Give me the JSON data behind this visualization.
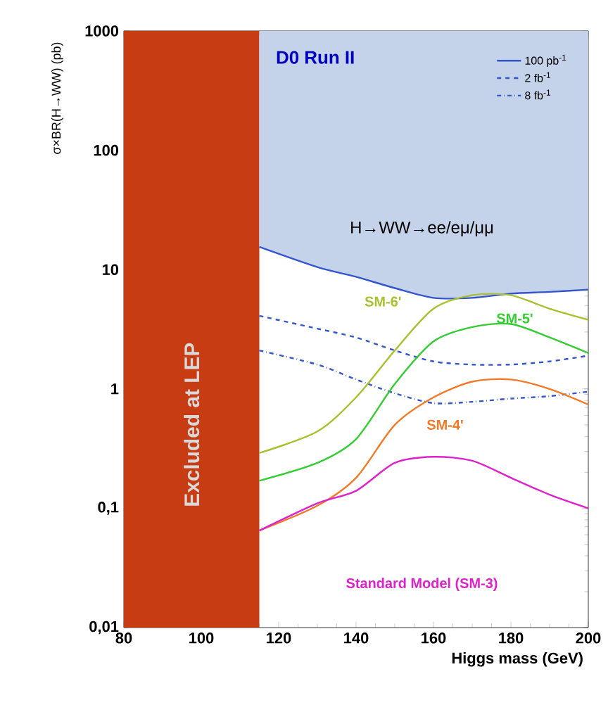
{
  "chart_data": {
    "type": "line",
    "xlabel": "Higgs mass (GeV)",
    "ylabel": "σ×BR(H→WW) (pb)",
    "x": [
      115,
      130,
      140,
      150,
      160,
      170,
      180,
      190,
      200
    ],
    "series": [
      {
        "name": "100 pb$^{-1}$",
        "color": "#3355cc",
        "line_style": "solid",
        "values": [
          15.5,
          10.5,
          8.7,
          7.0,
          5.8,
          5.8,
          6.3,
          6.5,
          6.8
        ],
        "lower": [
          15.5,
          10.5,
          8.7,
          7.0,
          5.8,
          5.8,
          6.3,
          6.5,
          6.8
        ],
        "upper": [
          1000,
          1000,
          1000,
          1000,
          1000,
          1000,
          1000,
          1000,
          1000
        ]
      },
      {
        "name": "2 fb$^{-1}$",
        "color": "#3355cc",
        "line_style": "dashed",
        "values": [
          4.1,
          3.2,
          2.7,
          2.1,
          1.7,
          1.6,
          1.6,
          1.7,
          1.9
        ]
      },
      {
        "name": "8 fb$^{-1}$",
        "color": "#3355cc",
        "line_style": "dashdot",
        "values": [
          2.1,
          1.6,
          1.2,
          0.92,
          0.76,
          0.78,
          0.83,
          0.87,
          0.95
        ]
      },
      {
        "name": "SM-6'",
        "color": "#a8c030",
        "values": [
          0.29,
          0.44,
          0.85,
          2.1,
          4.7,
          6.1,
          6.1,
          4.7,
          3.8
        ]
      },
      {
        "name": "SM-5'",
        "color": "#33cc33",
        "values": [
          0.17,
          0.24,
          0.38,
          1.1,
          2.5,
          3.3,
          3.5,
          2.7,
          2.0
        ]
      },
      {
        "name": "SM-4'",
        "color": "#f07a28",
        "values": [
          0.065,
          0.105,
          0.18,
          0.5,
          0.85,
          1.15,
          1.2,
          1.0,
          0.74
        ]
      },
      {
        "name": "Standard Model (SM-3)",
        "color": "#dd22cc",
        "values": [
          0.065,
          0.11,
          0.14,
          0.24,
          0.27,
          0.25,
          0.18,
          0.13,
          0.1
        ]
      }
    ],
    "log": "y",
    "xlim": [
      80,
      200
    ],
    "ylim": [
      0.01,
      1000
    ],
    "xticks": [
      80,
      100,
      120,
      140,
      160,
      180,
      200
    ],
    "yticks": [
      {
        "value": 0.01,
        "label": "0,01"
      },
      {
        "value": 0.1,
        "label": "0,1"
      },
      1,
      10,
      100,
      1000
    ],
    "bands": [
      {
        "axis": "x",
        "from": 80,
        "to": 115,
        "label": "Excluded at LEP",
        "color": "#c83c14"
      }
    ],
    "annotations": [
      "D0 Run II",
      "H→WW→ee/eμ/μμ"
    ],
    "legend": "top right",
    "grid": false,
    "marker": "none"
  }
}
